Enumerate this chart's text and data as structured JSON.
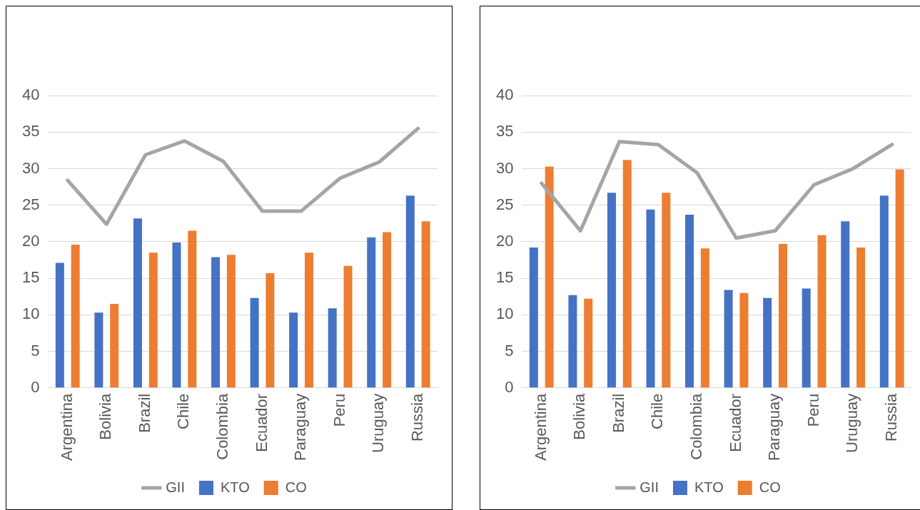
{
  "chart_data": [
    {
      "type": "bar",
      "categories": [
        "Argentina",
        "Bolivia",
        "Brazil",
        "Chile",
        "Colombia",
        "Ecuador",
        "Paraguay",
        "Peru",
        "Uruguay",
        "Russia"
      ],
      "ylim": [
        0,
        40
      ],
      "yticks": [
        0,
        5,
        10,
        15,
        20,
        25,
        30,
        35,
        40
      ],
      "grid": "y",
      "legend": "bottom",
      "marker": "none",
      "series": [
        {
          "name": "KTO",
          "color": "#4472c4",
          "values": [
            17.1,
            10.3,
            23.2,
            19.9,
            17.9,
            12.3,
            10.3,
            10.9,
            20.6,
            26.3
          ]
        },
        {
          "name": "CO",
          "color": "#ed7d31",
          "values": [
            19.6,
            11.5,
            18.5,
            21.5,
            18.2,
            15.7,
            18.5,
            16.7,
            21.3,
            22.8
          ]
        },
        {
          "name": "GII",
          "type": "line",
          "color": "#a5a5a5",
          "values": [
            28.4,
            22.4,
            31.9,
            33.8,
            31.0,
            24.2,
            24.2,
            28.7,
            30.9,
            35.5
          ]
        }
      ]
    },
    {
      "type": "bar",
      "categories": [
        "Argentina",
        "Bolivia",
        "Brazil",
        "Chile",
        "Colombia",
        "Ecuador",
        "Paraguay",
        "Peru",
        "Uruguay",
        "Russia"
      ],
      "ylim": [
        0,
        40
      ],
      "yticks": [
        0,
        5,
        10,
        15,
        20,
        25,
        30,
        35,
        40
      ],
      "grid": "y",
      "legend": "bottom",
      "marker": "none",
      "series": [
        {
          "name": "KTO",
          "color": "#4472c4",
          "values": [
            19.2,
            12.7,
            26.7,
            24.4,
            23.7,
            13.4,
            12.3,
            13.6,
            22.8,
            26.3
          ]
        },
        {
          "name": "CO",
          "color": "#ed7d31",
          "values": [
            30.3,
            12.2,
            31.2,
            26.7,
            19.1,
            13.0,
            19.7,
            20.9,
            19.2,
            29.9
          ]
        },
        {
          "name": "GII",
          "type": "line",
          "color": "#a5a5a5",
          "values": [
            28.0,
            21.5,
            33.7,
            33.3,
            29.4,
            20.5,
            21.5,
            27.8,
            30.0,
            33.3
          ]
        }
      ]
    }
  ]
}
